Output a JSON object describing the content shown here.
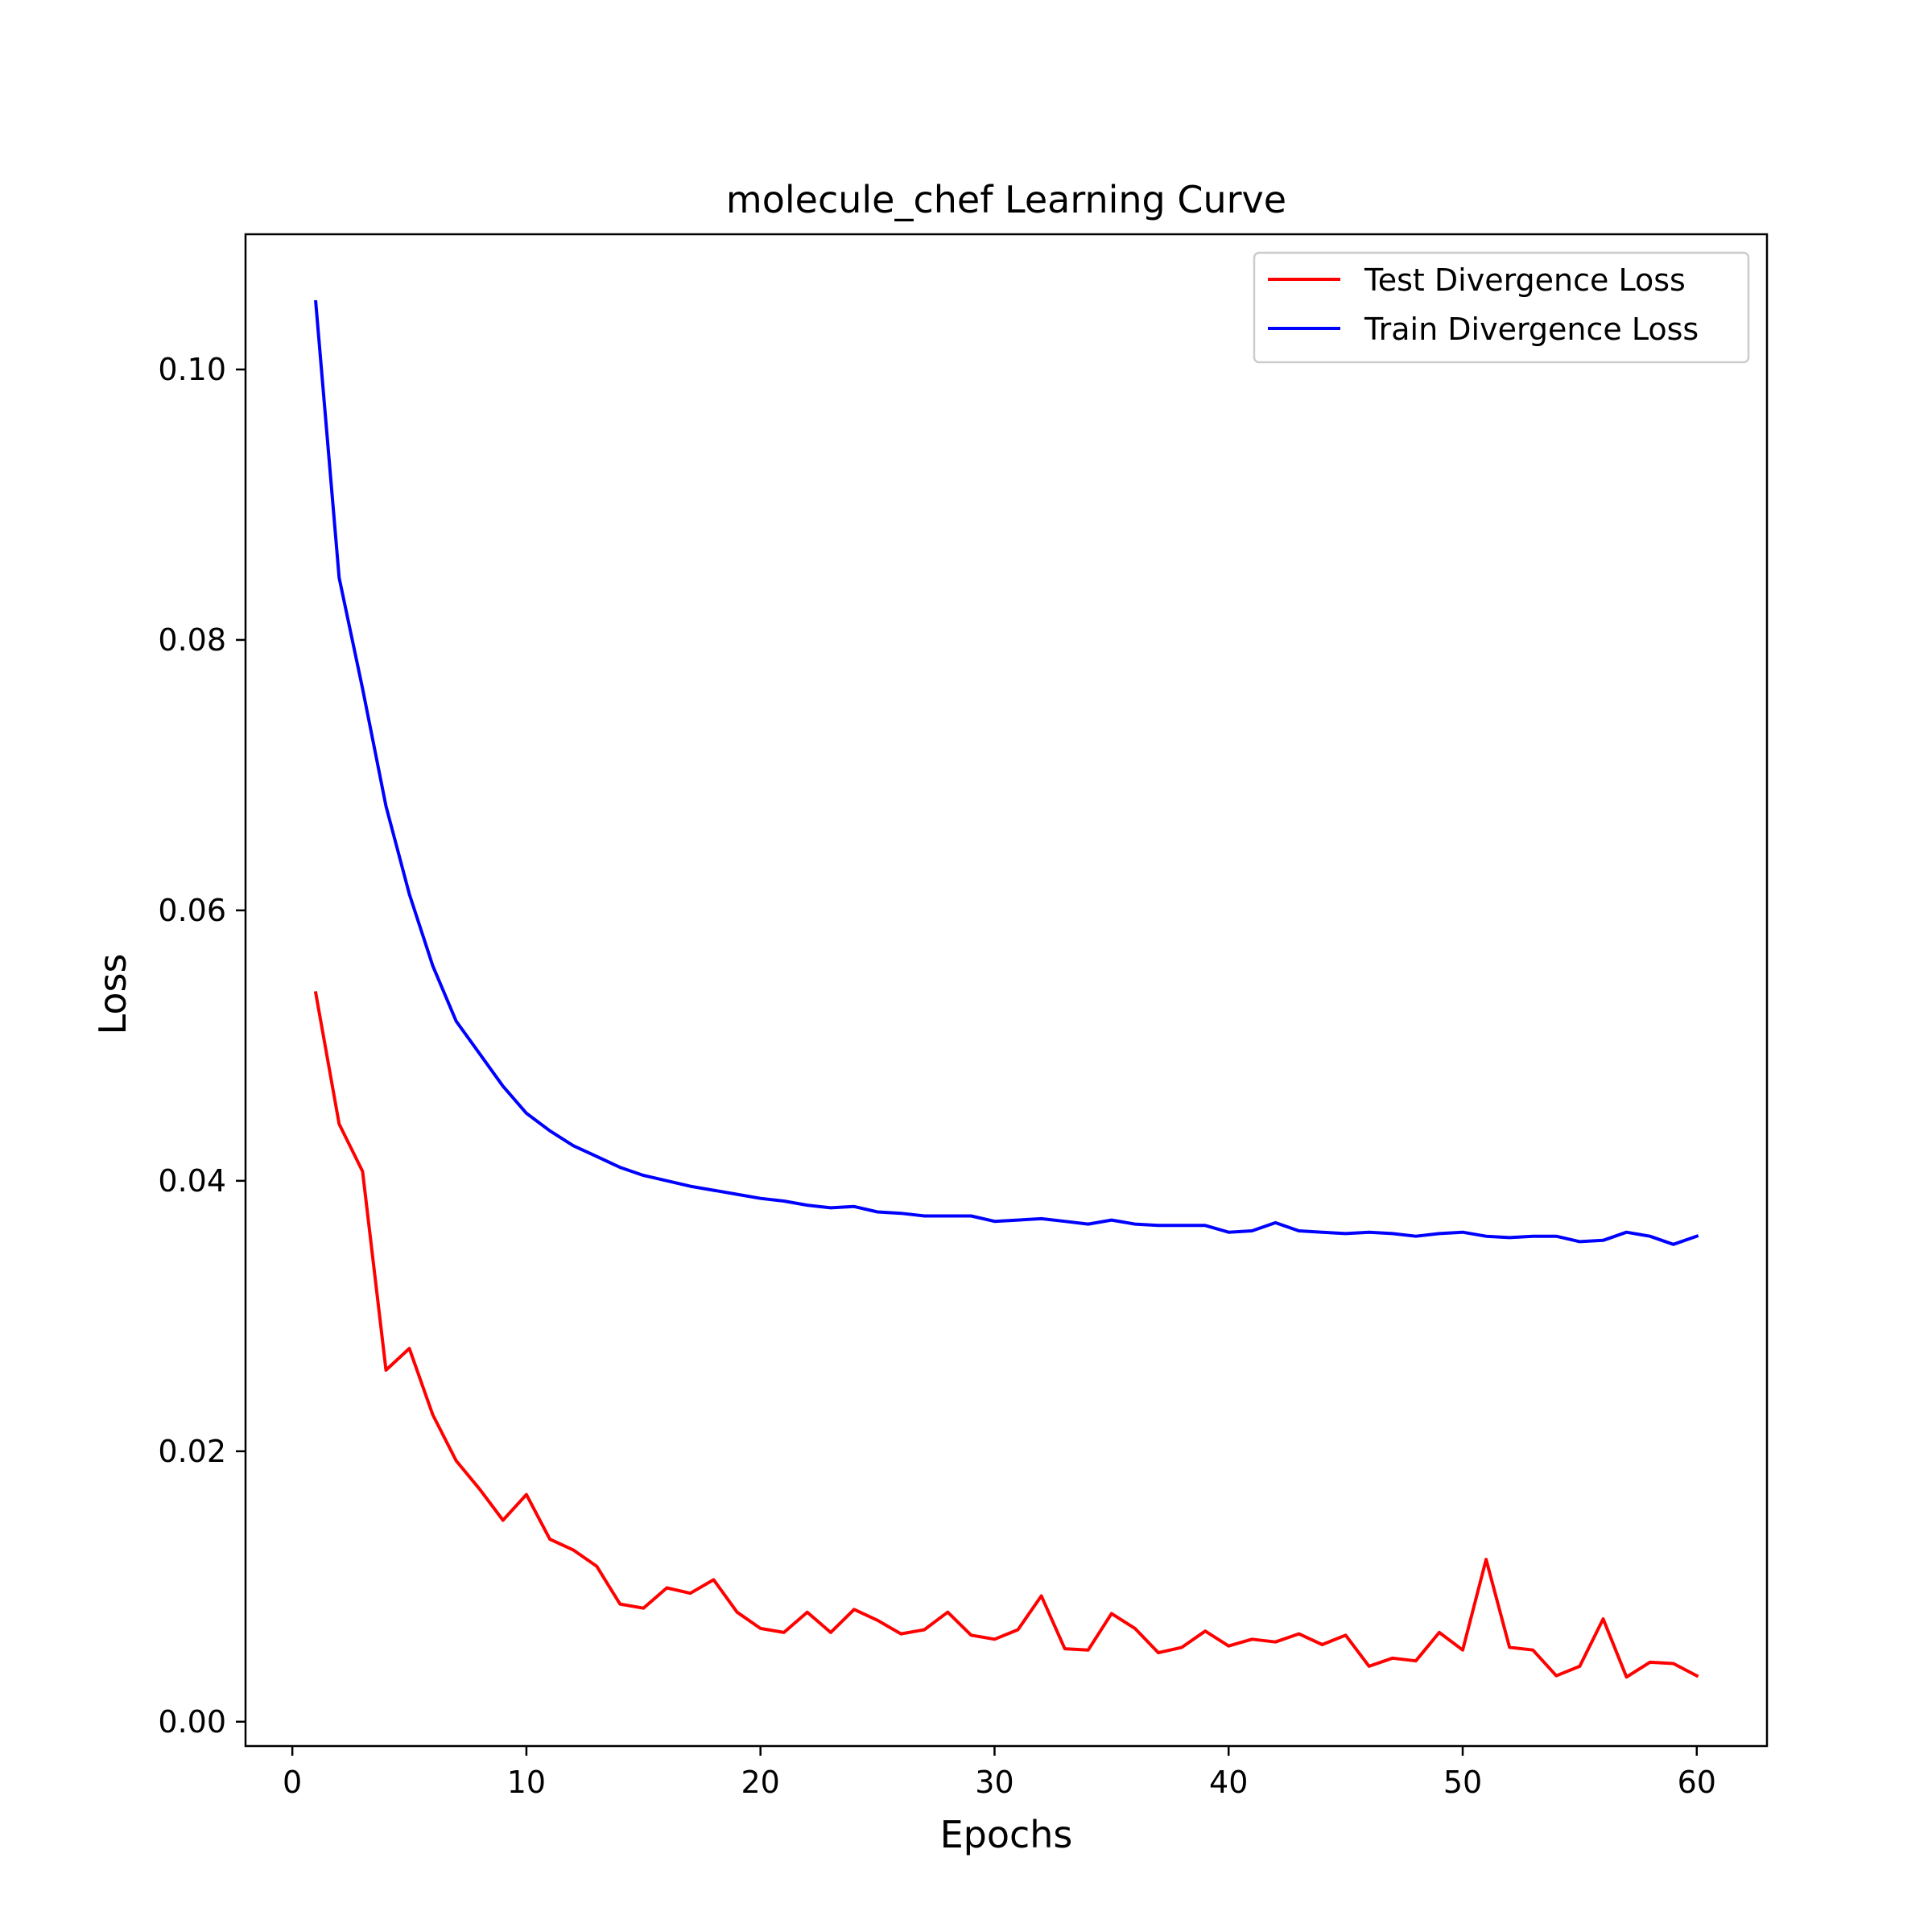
{
  "chart_data": {
    "type": "line",
    "title": "molecule_chef Learning Curve",
    "xlabel": "Epochs",
    "ylabel": "Loss",
    "xlim": [
      -2,
      63
    ],
    "ylim": [
      -0.0018,
      0.11
    ],
    "xticks": [
      0,
      10,
      20,
      30,
      40,
      50,
      60
    ],
    "xtick_labels": [
      "0",
      "10",
      "20",
      "30",
      "40",
      "50",
      "60"
    ],
    "yticks": [
      0.0,
      0.02,
      0.04,
      0.06,
      0.08,
      0.1
    ],
    "ytick_labels": [
      "0.00",
      "0.02",
      "0.04",
      "0.06",
      "0.08",
      "0.10"
    ],
    "grid": false,
    "legend_position": "top-right",
    "series": [
      {
        "name": "Test Divergence Loss",
        "color": "#ff0000",
        "x": [
          1,
          2,
          3,
          4,
          5,
          6,
          7,
          8,
          9,
          10,
          11,
          12,
          13,
          14,
          15,
          16,
          17,
          18,
          19,
          20,
          21,
          22,
          23,
          24,
          25,
          26,
          27,
          28,
          29,
          30,
          31,
          32,
          33,
          34,
          35,
          36,
          37,
          38,
          39,
          40,
          41,
          42,
          43,
          44,
          45,
          46,
          47,
          48,
          49,
          50,
          51,
          52,
          53,
          54,
          55,
          56,
          57,
          58,
          59,
          60
        ],
        "values": [
          0.0539,
          0.0442,
          0.0407,
          0.026,
          0.0276,
          0.0227,
          0.0193,
          0.0172,
          0.0149,
          0.0168,
          0.0135,
          0.0127,
          0.0115,
          0.0087,
          0.0084,
          0.0099,
          0.0095,
          0.0105,
          0.0081,
          0.0069,
          0.0066,
          0.0081,
          0.0066,
          0.0083,
          0.0075,
          0.0065,
          0.0068,
          0.0081,
          0.0064,
          0.0061,
          0.0068,
          0.0093,
          0.0054,
          0.0053,
          0.008,
          0.0069,
          0.0051,
          0.0055,
          0.0067,
          0.0056,
          0.0061,
          0.0059,
          0.0065,
          0.0057,
          0.0064,
          0.0041,
          0.0047,
          0.0045,
          0.0066,
          0.0053,
          0.012,
          0.0055,
          0.0053,
          0.0034,
          0.0041,
          0.0076,
          0.0033,
          0.0044,
          0.0043,
          0.0034
        ]
      },
      {
        "name": "Train Divergence Loss",
        "color": "#0000ff",
        "x": [
          1,
          2,
          3,
          4,
          5,
          6,
          7,
          8,
          9,
          10,
          11,
          12,
          13,
          14,
          15,
          16,
          17,
          18,
          19,
          20,
          21,
          22,
          23,
          24,
          25,
          26,
          27,
          28,
          29,
          30,
          31,
          32,
          33,
          34,
          35,
          36,
          37,
          38,
          39,
          40,
          41,
          42,
          43,
          44,
          45,
          46,
          47,
          48,
          49,
          50,
          51,
          52,
          53,
          54,
          55,
          56,
          57,
          58,
          59,
          60
        ],
        "values": [
          0.105,
          0.0846,
          0.0764,
          0.0677,
          0.0612,
          0.0559,
          0.0518,
          0.0494,
          0.047,
          0.045,
          0.0437,
          0.0426,
          0.0418,
          0.041,
          0.0404,
          0.04,
          0.0396,
          0.0393,
          0.039,
          0.0387,
          0.0385,
          0.0382,
          0.038,
          0.0381,
          0.0377,
          0.0376,
          0.0374,
          0.0374,
          0.0374,
          0.037,
          0.0371,
          0.0372,
          0.037,
          0.0368,
          0.0371,
          0.0368,
          0.0367,
          0.0367,
          0.0367,
          0.0362,
          0.0363,
          0.0369,
          0.0363,
          0.0362,
          0.0361,
          0.0362,
          0.0361,
          0.0359,
          0.0361,
          0.0362,
          0.0359,
          0.0358,
          0.0359,
          0.0359,
          0.0355,
          0.0356,
          0.0362,
          0.0359,
          0.0353,
          0.0359
        ]
      }
    ]
  }
}
